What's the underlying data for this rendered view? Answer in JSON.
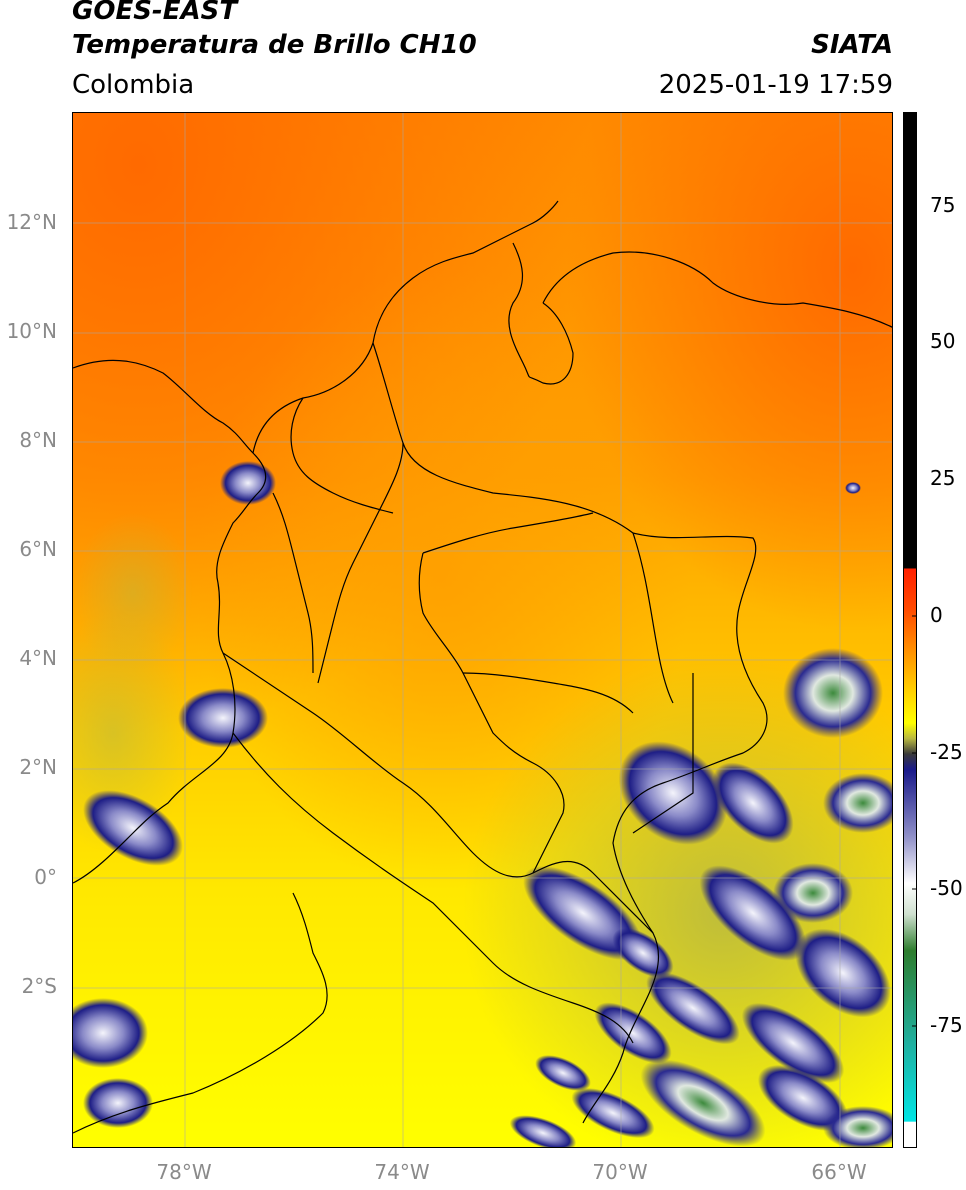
{
  "header": {
    "satellite": "GOES-EAST",
    "product": "Temperatura de Brillo CH10",
    "org": "SIATA",
    "region": "Colombia",
    "datetime": "2025-01-19 17:59"
  },
  "axes": {
    "lat_labels": [
      "12°N",
      "10°N",
      "8°N",
      "6°N",
      "4°N",
      "2°N",
      "0°",
      "2°S"
    ],
    "lon_labels": [
      "78°W",
      "74°W",
      "70°W",
      "66°W"
    ]
  },
  "colorbar": {
    "ticks": [
      "75",
      "50",
      "25",
      "0",
      "-25",
      "-50",
      "-75"
    ],
    "colors": [
      "#000000",
      "#ff2000",
      "#ff8000",
      "#ffd200",
      "#ffff00",
      "#1a1a7a",
      "#e8e8f5",
      "#2e7d2e",
      "#00e5e5",
      "#ffffff"
    ]
  }
}
